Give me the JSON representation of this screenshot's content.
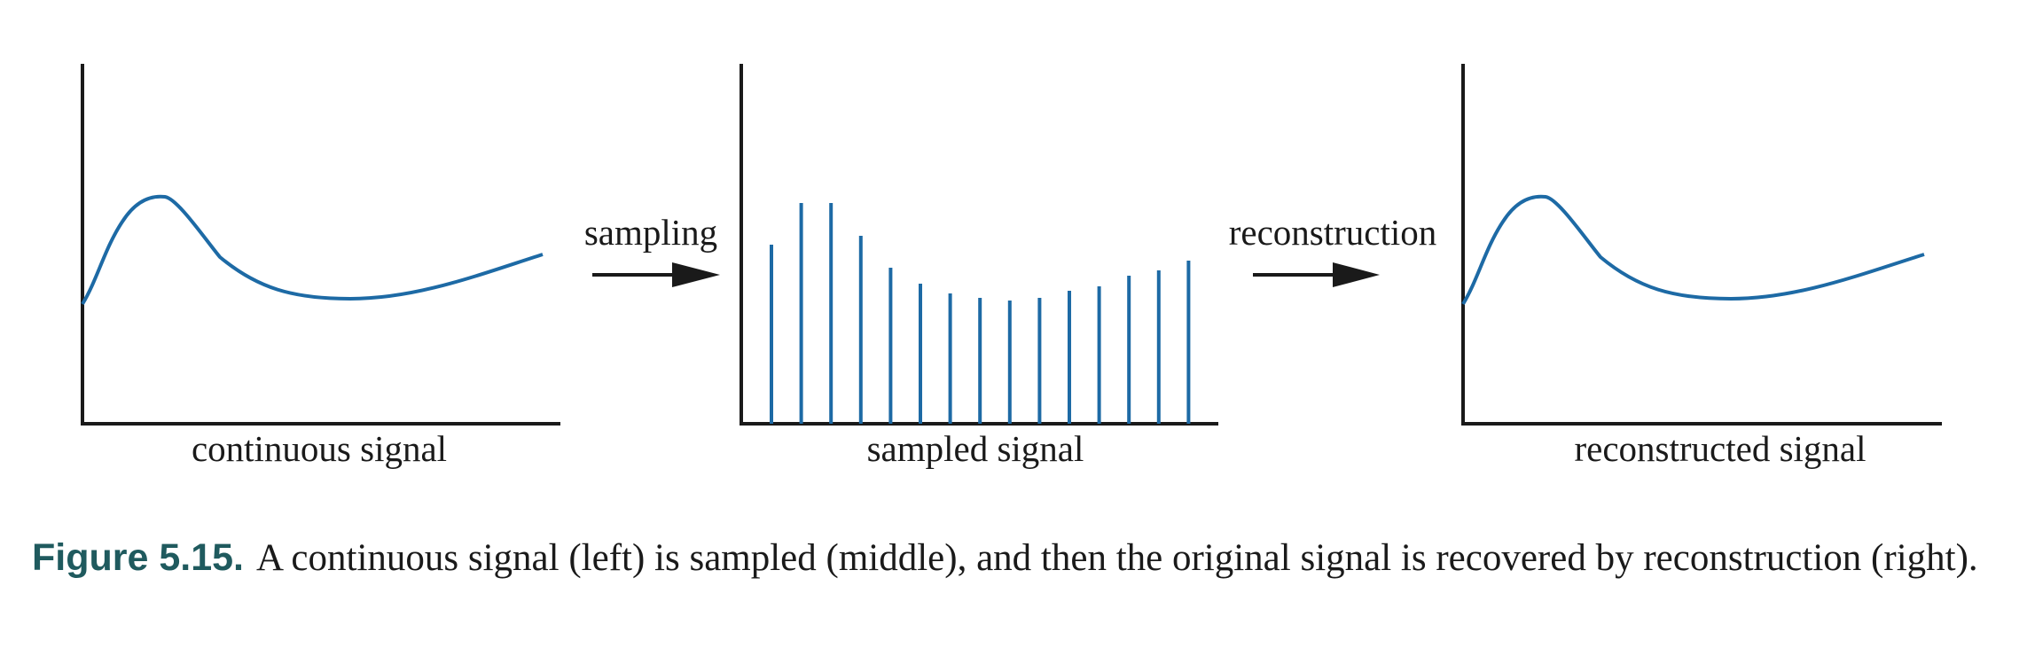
{
  "colors": {
    "signal": "#1d6aa5",
    "axis": "#1a1a1a",
    "caption_label": "#1f5a5e"
  },
  "panels": {
    "left": {
      "label": "continuous signal"
    },
    "middle": {
      "label": "sampled signal",
      "sample_count": 15
    },
    "right": {
      "label": "reconstructed signal"
    }
  },
  "arrows": {
    "sampling": {
      "label": "sampling"
    },
    "reconstruction": {
      "label": "reconstruction"
    }
  },
  "caption": {
    "label": "Figure 5.15.",
    "text": "A continuous signal (left) is sampled (middle), and then the original signal is recovered by reconstruction (right)."
  }
}
